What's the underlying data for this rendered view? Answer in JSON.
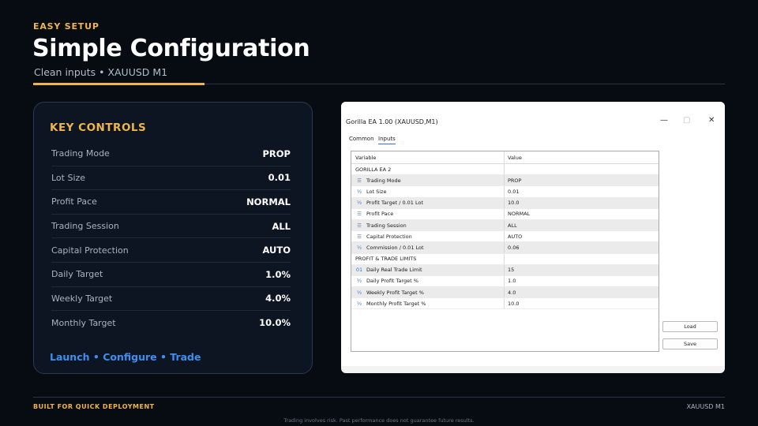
{
  "header": {
    "eyebrow": "EASY SETUP",
    "title": "Simple Configuration",
    "subtitle": "Clean inputs • XAUUSD M1"
  },
  "panel": {
    "title": "KEY CONTROLS",
    "rows": [
      {
        "label": "Trading Mode",
        "value": "PROP"
      },
      {
        "label": "Lot Size",
        "value": "0.01"
      },
      {
        "label": "Profit Pace",
        "value": "NORMAL"
      },
      {
        "label": "Trading Session",
        "value": "ALL"
      },
      {
        "label": "Capital Protection",
        "value": "AUTO"
      },
      {
        "label": "Daily Target",
        "value": "1.0%"
      },
      {
        "label": "Weekly Target",
        "value": "4.0%"
      },
      {
        "label": "Monthly Target",
        "value": "10.0%"
      }
    ],
    "footer": "Launch • Configure • Trade"
  },
  "dialog": {
    "title": "Gorilla EA 1.00 (XAUUSD,M1)",
    "tabs": [
      "Common",
      "Inputs"
    ],
    "columns": [
      "Variable",
      "Value"
    ],
    "rows": [
      {
        "icon": "",
        "variable": "GORILLA EA 2",
        "value": ""
      },
      {
        "icon": "list-icon",
        "variable": "Trading Mode",
        "value": "PROP"
      },
      {
        "icon": "fraction-icon",
        "variable": "Lot Size",
        "value": "0.01"
      },
      {
        "icon": "fraction-icon",
        "variable": "Profit Target / 0.01 Lot",
        "value": "10.0"
      },
      {
        "icon": "list-icon",
        "variable": "Profit Pace",
        "value": "NORMAL"
      },
      {
        "icon": "list-icon",
        "variable": "Trading Session",
        "value": "ALL"
      },
      {
        "icon": "list-icon",
        "variable": "Capital Protection",
        "value": "AUTO"
      },
      {
        "icon": "fraction-icon",
        "variable": "Commission / 0.01 Lot",
        "value": "0.06"
      },
      {
        "icon": "",
        "variable": "PROFIT & TRADE LIMITS",
        "value": ""
      },
      {
        "icon": "integer-icon",
        "variable": "Daily Real Trade Limit",
        "value": "15"
      },
      {
        "icon": "fraction-icon",
        "variable": "Daily Profit Target %",
        "value": "1.0"
      },
      {
        "icon": "fraction-icon",
        "variable": "Weekly Profit Target %",
        "value": "4.0"
      },
      {
        "icon": "fraction-icon",
        "variable": "Monthly Profit Target %",
        "value": "10.0"
      }
    ],
    "buttons": {
      "load": "Load",
      "save": "Save"
    },
    "icon_glyphs": {
      "list-icon": "☰",
      "fraction-icon": "½",
      "integer-icon": "01"
    }
  },
  "footer": {
    "left": "BUILT FOR QUICK DEPLOYMENT",
    "right": "XAUUSD M1",
    "disclaimer": "Trading involves risk. Past performance does not guarantee future results."
  },
  "colors": {
    "background": "#070b12",
    "accent": "#f0b54a",
    "link": "#3d8ff0",
    "panel": "#0d1522"
  }
}
